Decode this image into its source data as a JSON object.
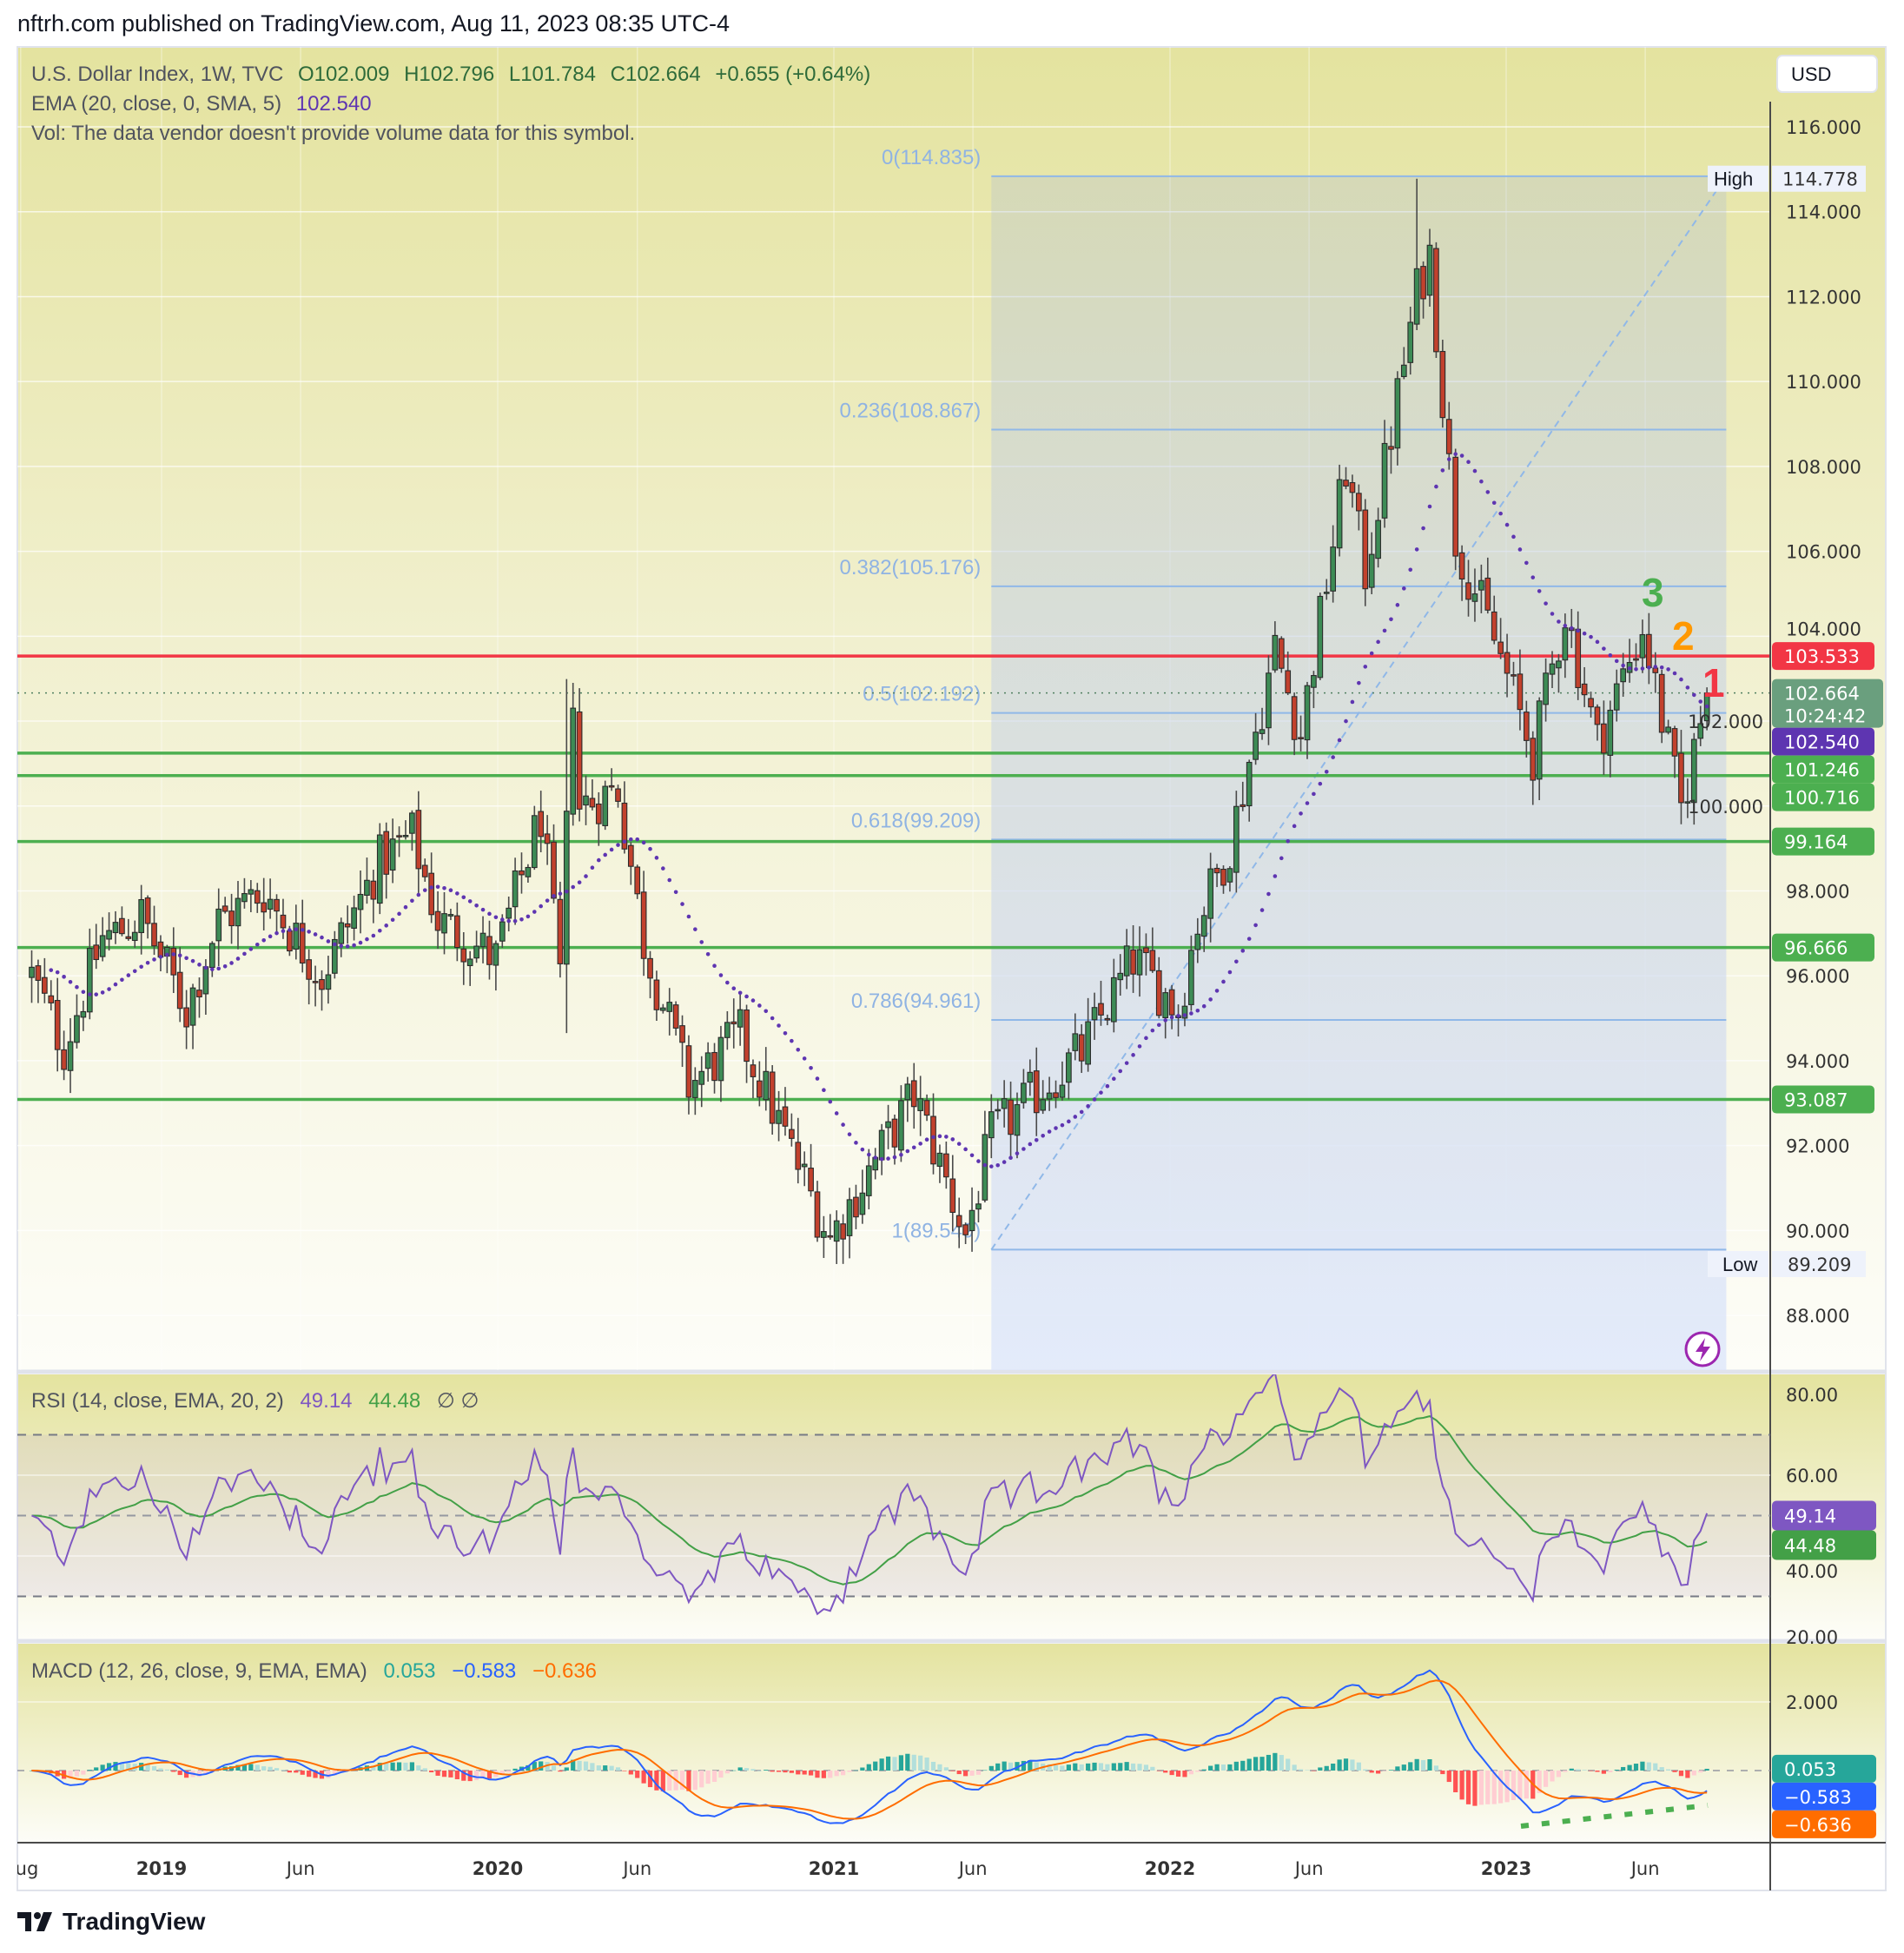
{
  "header": {
    "published": "nftrh.com published on TradingView.com, Aug 11, 2023 08:35 UTC-4"
  },
  "legend": {
    "symbol": "U.S. Dollar Index, 1W, TVC",
    "open": "O102.009",
    "high": "H102.796",
    "low": "L101.784",
    "close": "C102.664",
    "change": "+0.655 (+0.64%)",
    "ema_label": "EMA (20, close, 0, SMA, 5)",
    "ema_value": "102.540",
    "vol_note": "Vol: The data vendor doesn't provide volume data for this symbol."
  },
  "currency_button": "USD",
  "rsi_legend": {
    "label": "RSI (14, close, EMA, 20, 2)",
    "rsi_value": "49.14",
    "ma_value": "44.48",
    "extra": "∅ ∅"
  },
  "macd_legend": {
    "label": "MACD (12, 26, close, 9, EMA, EMA)",
    "hist_value": "0.053",
    "macd_value": "−0.583",
    "signal_value": "−0.636"
  },
  "wave_labels": [
    {
      "text": "3",
      "color": "#4caf50"
    },
    {
      "text": "2",
      "color": "#ff9800"
    },
    {
      "text": "1",
      "color": "#f23645"
    }
  ],
  "high_label": {
    "tag": "High",
    "value": "114.778",
    "price": 114.778
  },
  "low_label": {
    "tag": "Low",
    "value": "89.209",
    "price": 89.209
  },
  "countdown": "10:24:42",
  "brand": "TradingView",
  "colors": {
    "up": "#3d8b55",
    "down": "#c2412d",
    "ema": "#5e35b1",
    "rsi": "#7e57c2",
    "rsi_ma": "#43a047",
    "macd": "#2962ff",
    "signal": "#ff6d00",
    "hist_up_strong": "#26a69a",
    "hist_up_weak": "#b2dfdb",
    "hist_down_strong": "#ff5252",
    "hist_down_weak": "#ffcdd2",
    "fib": "#90b8e8"
  },
  "chart_data": {
    "type": "candlestick",
    "title": "U.S. Dollar Index, 1W, TVC",
    "interval": "1W",
    "last_bar": {
      "open": 102.009,
      "high": 102.796,
      "low": 101.784,
      "close": 102.664
    },
    "close_path": [
      [
        "2018-08-13",
        96.0
      ],
      [
        "2018-09-17",
        94.3
      ],
      [
        "2018-10-29",
        96.9
      ],
      [
        "2018-11-12",
        97.0
      ],
      [
        "2018-12-10",
        97.4
      ],
      [
        "2019-01-28",
        95.2
      ],
      [
        "2019-03-04",
        97.3
      ],
      [
        "2019-04-22",
        98.0
      ],
      [
        "2019-06-24",
        96.0
      ],
      [
        "2019-08-26",
        98.7
      ],
      [
        "2019-09-30",
        99.3
      ],
      [
        "2019-10-28",
        97.3
      ],
      [
        "2019-12-30",
        96.4
      ],
      [
        "2020-02-17",
        99.8
      ],
      [
        "2020-03-09",
        95.9
      ],
      [
        "2020-03-23",
        102.8
      ],
      [
        "2020-03-30",
        100.0
      ],
      [
        "2020-05-11",
        100.4
      ],
      [
        "2020-06-08",
        96.8
      ],
      [
        "2020-07-27",
        93.4
      ],
      [
        "2020-09-21",
        94.6
      ],
      [
        "2020-12-28",
        89.8
      ],
      [
        "2021-01-04",
        90.1
      ],
      [
        "2021-03-29",
        93.2
      ],
      [
        "2021-05-24",
        89.9
      ],
      [
        "2021-06-21",
        92.2
      ],
      [
        "2021-08-16",
        93.4
      ],
      [
        "2021-09-27",
        94.2
      ],
      [
        "2021-11-22",
        96.4
      ],
      [
        "2022-01-10",
        95.2
      ],
      [
        "2022-01-31",
        97.3
      ],
      [
        "2022-03-07",
        99.1
      ],
      [
        "2022-04-25",
        103.7
      ],
      [
        "2022-05-23",
        101.7
      ],
      [
        "2022-07-11",
        108.0
      ],
      [
        "2022-08-01",
        105.5
      ],
      [
        "2022-09-26",
        112.1
      ],
      [
        "2022-10-10",
        113.0
      ],
      [
        "2022-11-07",
        106.3
      ],
      [
        "2022-12-26",
        103.5
      ],
      [
        "2023-01-30",
        101.2
      ],
      [
        "2023-03-06",
        104.6
      ],
      [
        "2023-04-10",
        101.5
      ],
      [
        "2023-05-29",
        104.2
      ],
      [
        "2023-07-10",
        99.9
      ],
      [
        "2023-07-31",
        102.0
      ],
      [
        "2023-08-07",
        102.664
      ]
    ],
    "wick_extremes": [
      {
        "date": "2020-03-16",
        "high": 102.99,
        "low": 94.65
      },
      {
        "date": "2021-01-04",
        "low": 89.21
      },
      {
        "date": "2022-09-26",
        "high": 114.778
      },
      {
        "date": "2023-07-10",
        "low": 99.57
      }
    ],
    "price_axis": {
      "min": 86.5,
      "max": 117.5,
      "ticks": [
        "116.000",
        "114.000",
        "112.000",
        "110.000",
        "108.000",
        "106.000",
        "104.000",
        "102.000",
        "100.000",
        "98.000",
        "96.000",
        "94.000",
        "92.000",
        "90.000",
        "88.000"
      ]
    },
    "time_axis": [
      {
        "label": "Aug",
        "date": "2018-08-01",
        "bold": false
      },
      {
        "label": "2019",
        "date": "2019-01-01",
        "bold": true
      },
      {
        "label": "Jun",
        "date": "2019-06-01",
        "bold": false
      },
      {
        "label": "2020",
        "date": "2020-01-01",
        "bold": true
      },
      {
        "label": "Jun",
        "date": "2020-06-01",
        "bold": false
      },
      {
        "label": "2021",
        "date": "2021-01-01",
        "bold": true
      },
      {
        "label": "Jun",
        "date": "2021-06-01",
        "bold": false
      },
      {
        "label": "2022",
        "date": "2022-01-01",
        "bold": true
      },
      {
        "label": "Jun",
        "date": "2022-06-01",
        "bold": false
      },
      {
        "label": "2023",
        "date": "2023-01-01",
        "bold": true
      },
      {
        "label": "Jun",
        "date": "2023-06-01",
        "bold": false
      }
    ],
    "fib_retracement": {
      "start_date": "2021-06-21",
      "end_date": "2023-08-28",
      "levels": [
        {
          "ratio": 0,
          "price": 114.835,
          "label": "0(114.835)"
        },
        {
          "ratio": 0.236,
          "price": 108.867,
          "label": "0.236(108.867)"
        },
        {
          "ratio": 0.382,
          "price": 105.176,
          "label": "0.382(105.176)"
        },
        {
          "ratio": 0.5,
          "price": 102.192,
          "label": "0.5(102.192)"
        },
        {
          "ratio": 0.618,
          "price": 99.209,
          "label": "0.618(99.209)"
        },
        {
          "ratio": 0.786,
          "price": 94.961,
          "label": "0.786(94.961)"
        },
        {
          "ratio": 1,
          "price": 89.549,
          "label": "1(89.549)"
        }
      ]
    },
    "horizontal_lines": [
      {
        "price": 103.533,
        "color": "#f23645",
        "label": "103.533"
      },
      {
        "price": 101.246,
        "color": "#4caf50",
        "label": "101.246"
      },
      {
        "price": 100.716,
        "color": "#4caf50",
        "label": "100.716"
      },
      {
        "price": 99.164,
        "color": "#4caf50",
        "label": "99.164"
      },
      {
        "price": 96.666,
        "color": "#4caf50",
        "label": "96.666"
      },
      {
        "price": 93.087,
        "color": "#4caf50",
        "label": "93.087"
      }
    ],
    "axis_badges": [
      {
        "price": 103.533,
        "label": "103.533",
        "color": "#f23645"
      },
      {
        "price": 102.664,
        "label": "102.664",
        "color": "#6a9f7e",
        "sub": "10:24:42"
      },
      {
        "price": 102.54,
        "label": "102.540",
        "color": "#5e35b1"
      },
      {
        "price": 101.246,
        "label": "101.246",
        "color": "#4caf50"
      },
      {
        "price": 100.716,
        "label": "100.716",
        "color": "#4caf50"
      },
      {
        "price": 99.164,
        "label": "99.164",
        "color": "#4caf50"
      },
      {
        "price": 96.666,
        "label": "96.666",
        "color": "#4caf50"
      },
      {
        "price": 93.087,
        "label": "93.087",
        "color": "#4caf50"
      }
    ],
    "rsi": {
      "axis_ticks": [
        "80.00",
        "60.00",
        "40.00",
        "20.00"
      ],
      "upper_band": 70,
      "middle": 50,
      "lower_band": 30,
      "last_rsi": 49.14,
      "last_ma": 44.48
    },
    "macd": {
      "axis_ticks": [
        "2.000"
      ],
      "last_hist": 0.053,
      "last_macd": -0.583,
      "last_signal": -0.636
    }
  }
}
